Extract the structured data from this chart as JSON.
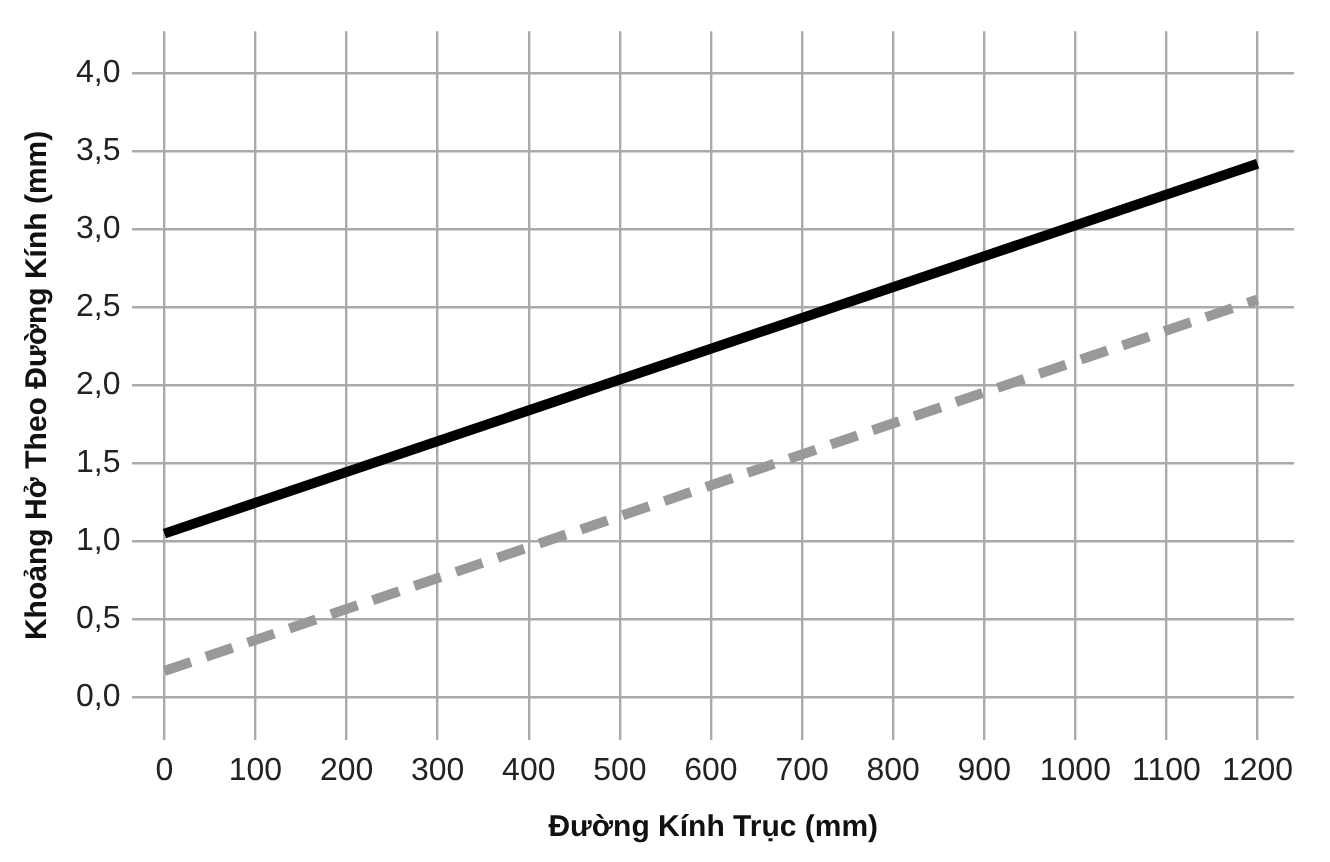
{
  "chart_data": {
    "type": "line",
    "xlabel": "Đường Kính Trục (mm)",
    "ylabel": "Khoảng Hở Theo Đường Kính (mm)",
    "series": [
      {
        "color": "#000000",
        "line_style": "solid",
        "values": [
          1.05,
          3.42
        ]
      },
      {
        "color": "#999999",
        "line_style": "dashed",
        "values": [
          0.17,
          2.55
        ]
      }
    ],
    "x": [
      0,
      1200
    ],
    "xlim": [
      -35,
      1240
    ],
    "xticks": [
      0,
      100,
      200,
      300,
      400,
      500,
      600,
      700,
      800,
      900,
      1000,
      1100,
      1200
    ],
    "ylim": [
      -0.27,
      4.27
    ],
    "yticks": [
      {
        "value": 0,
        "label": "0,0"
      },
      {
        "value": 0.5,
        "label": "0,5"
      },
      {
        "value": 1,
        "label": "1,0"
      },
      {
        "value": 1.5,
        "label": "1,5"
      },
      {
        "value": 2,
        "label": "2,0"
      },
      {
        "value": 2.5,
        "label": "2,5"
      },
      {
        "value": 3,
        "label": "3,0"
      },
      {
        "value": 3.5,
        "label": "3,5"
      },
      {
        "value": 4,
        "label": "4,0"
      }
    ],
    "grid": true,
    "legend": false,
    "marker": "none"
  }
}
